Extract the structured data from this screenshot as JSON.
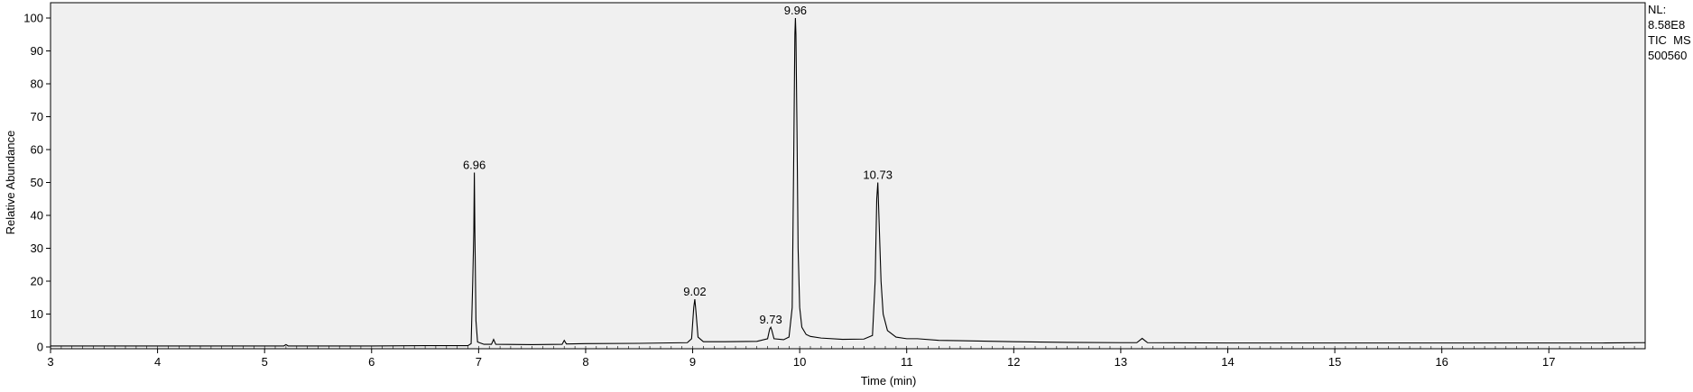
{
  "chart_data": {
    "type": "line",
    "xlabel": "Time (min)",
    "ylabel": "Relative Abundance",
    "xlim": [
      3,
      17.9
    ],
    "ylim": [
      0,
      100
    ],
    "x_ticks": [
      3,
      4,
      5,
      6,
      7,
      8,
      9,
      10,
      11,
      12,
      13,
      14,
      15,
      16,
      17
    ],
    "y_ticks": [
      0,
      10,
      20,
      30,
      40,
      50,
      60,
      70,
      80,
      90,
      100
    ],
    "grid": false,
    "background": "#f0f0f0",
    "line_color": "#000000",
    "annotations": [
      {
        "label": "6.96",
        "x": 6.96,
        "y": 53
      },
      {
        "label": "9.02",
        "x": 9.02,
        "y": 14.5
      },
      {
        "label": "9.73",
        "x": 9.73,
        "y": 6
      },
      {
        "label": "9.96",
        "x": 9.96,
        "y": 100
      },
      {
        "label": "10.73",
        "x": 10.73,
        "y": 50
      }
    ],
    "series": [
      {
        "points": [
          [
            3.0,
            0.3
          ],
          [
            4.0,
            0.3
          ],
          [
            5.0,
            0.3
          ],
          [
            5.18,
            0.3
          ],
          [
            5.2,
            0.7
          ],
          [
            5.22,
            0.3
          ],
          [
            6.0,
            0.3
          ],
          [
            6.5,
            0.4
          ],
          [
            6.9,
            0.4
          ],
          [
            6.93,
            1.0
          ],
          [
            6.945,
            20
          ],
          [
            6.955,
            35
          ],
          [
            6.96,
            53
          ],
          [
            6.965,
            35
          ],
          [
            6.975,
            8
          ],
          [
            6.99,
            1.5
          ],
          [
            7.05,
            0.8
          ],
          [
            7.12,
            0.8
          ],
          [
            7.14,
            2.3
          ],
          [
            7.16,
            0.8
          ],
          [
            7.5,
            0.7
          ],
          [
            7.78,
            0.8
          ],
          [
            7.8,
            2.0
          ],
          [
            7.82,
            0.9
          ],
          [
            8.0,
            1.0
          ],
          [
            8.5,
            1.1
          ],
          [
            8.95,
            1.3
          ],
          [
            8.99,
            2.5
          ],
          [
            9.01,
            12
          ],
          [
            9.02,
            14.5
          ],
          [
            9.03,
            11
          ],
          [
            9.05,
            3
          ],
          [
            9.1,
            1.6
          ],
          [
            9.3,
            1.6
          ],
          [
            9.6,
            1.7
          ],
          [
            9.7,
            2.5
          ],
          [
            9.72,
            5.5
          ],
          [
            9.73,
            6.0
          ],
          [
            9.74,
            5.0
          ],
          [
            9.76,
            2.5
          ],
          [
            9.85,
            2.2
          ],
          [
            9.9,
            3.0
          ],
          [
            9.93,
            12
          ],
          [
            9.945,
            60
          ],
          [
            9.955,
            95
          ],
          [
            9.96,
            100
          ],
          [
            9.965,
            95
          ],
          [
            9.975,
            65
          ],
          [
            9.985,
            30
          ],
          [
            10.0,
            12
          ],
          [
            10.02,
            6
          ],
          [
            10.06,
            3.8
          ],
          [
            10.1,
            3.2
          ],
          [
            10.2,
            2.7
          ],
          [
            10.4,
            2.3
          ],
          [
            10.6,
            2.4
          ],
          [
            10.68,
            3.5
          ],
          [
            10.705,
            20
          ],
          [
            10.72,
            45
          ],
          [
            10.73,
            50
          ],
          [
            10.74,
            40
          ],
          [
            10.76,
            20
          ],
          [
            10.78,
            10
          ],
          [
            10.82,
            5
          ],
          [
            10.9,
            3.0
          ],
          [
            11.0,
            2.5
          ],
          [
            11.1,
            2.5
          ],
          [
            11.3,
            2.0
          ],
          [
            11.5,
            1.9
          ],
          [
            12.0,
            1.6
          ],
          [
            12.5,
            1.4
          ],
          [
            13.0,
            1.3
          ],
          [
            13.15,
            1.3
          ],
          [
            13.2,
            2.6
          ],
          [
            13.25,
            1.3
          ],
          [
            14.0,
            1.2
          ],
          [
            15.0,
            1.2
          ],
          [
            16.0,
            1.2
          ],
          [
            17.0,
            1.2
          ],
          [
            17.5,
            1.2
          ],
          [
            17.9,
            1.3
          ]
        ]
      }
    ]
  },
  "info": {
    "nl_label": "NL:",
    "nl_value": "8.58E8",
    "trace": "TIC  MS",
    "sample": "500560"
  }
}
